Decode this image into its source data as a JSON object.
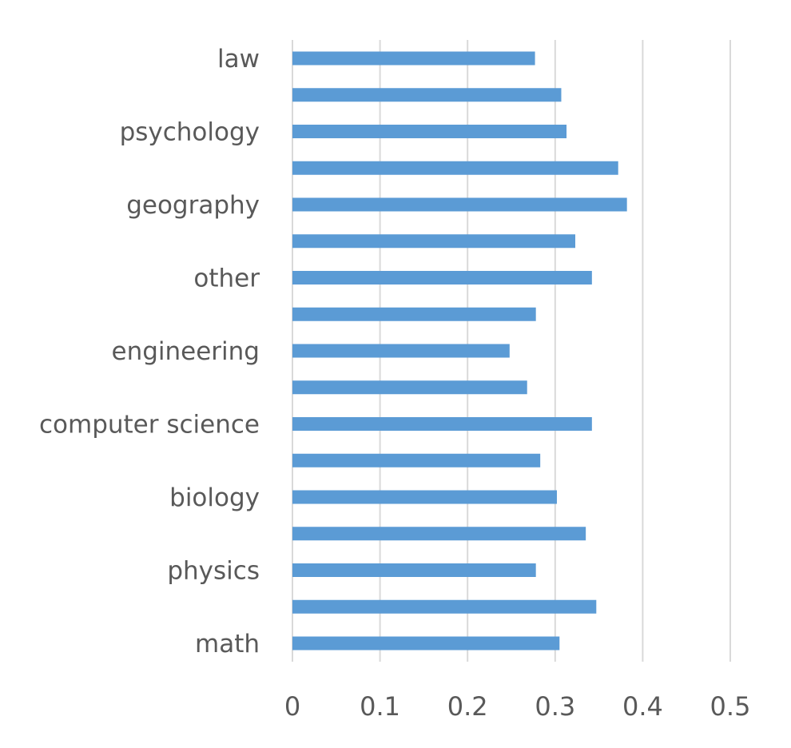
{
  "chart_data": {
    "type": "bar",
    "orientation": "horizontal",
    "categories_top_to_bottom": [
      "law",
      "",
      "psychology",
      "",
      "geography",
      "",
      "other",
      "",
      "engineering",
      "",
      "computer science",
      "",
      "biology",
      "",
      "physics",
      "",
      "math"
    ],
    "values": [
      0.277,
      0.307,
      0.313,
      0.372,
      0.382,
      0.323,
      0.342,
      0.278,
      0.248,
      0.268,
      0.342,
      0.283,
      0.302,
      0.335,
      0.278,
      0.347,
      0.305
    ],
    "x_ticks": [
      "0",
      "0.1",
      "0.2",
      "0.3",
      "0.4",
      "0.5"
    ],
    "xlim": [
      0,
      0.5
    ],
    "grid": "vertical",
    "title": "",
    "xlabel": "",
    "ylabel": "",
    "bar_color": "#5B9BD5",
    "grid_color": "#D9D9D9",
    "label_color": "#595959"
  }
}
